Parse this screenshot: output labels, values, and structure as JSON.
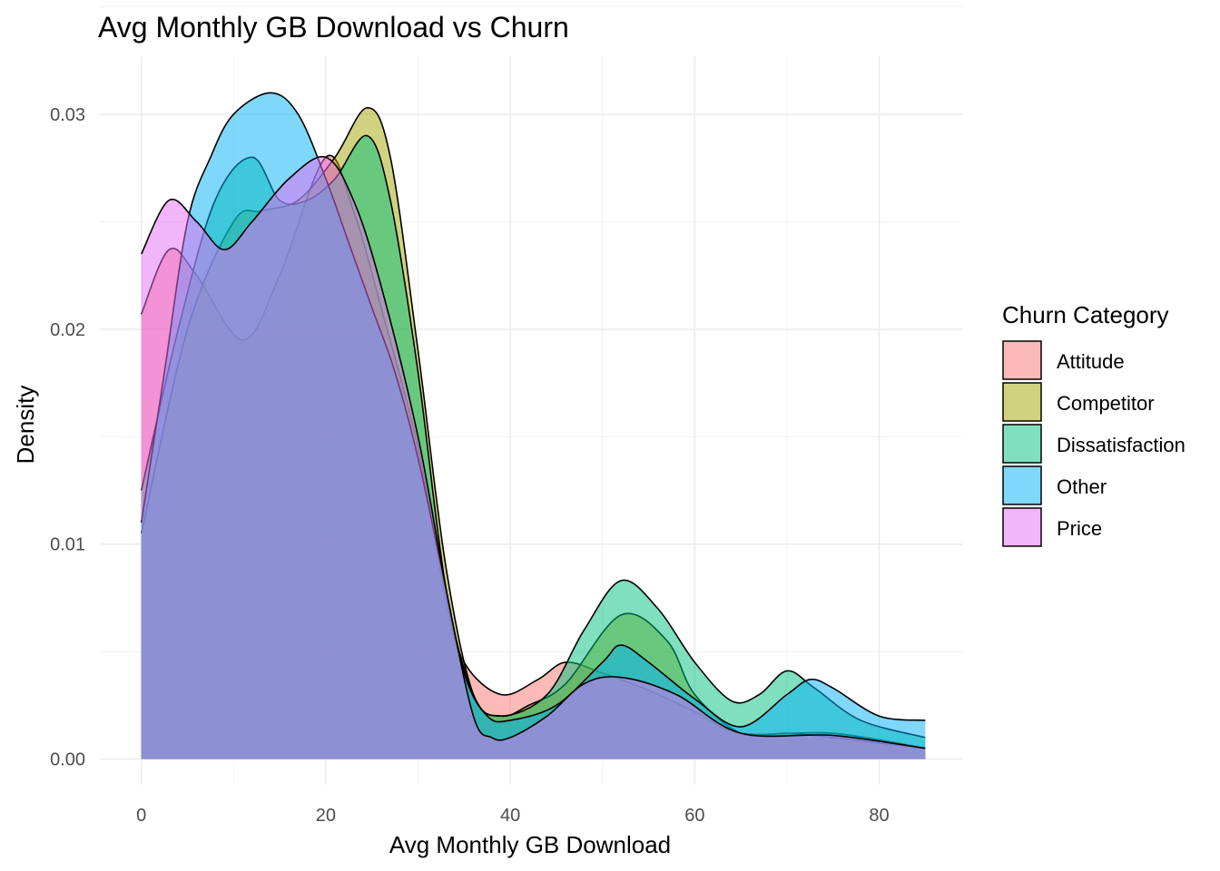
{
  "chart_data": {
    "type": "area",
    "subtype": "density",
    "title": "Avg Monthly GB Download vs Churn",
    "xlabel": "Avg Monthly GB Download",
    "ylabel": "Density",
    "xlim": [
      -4.5,
      89
    ],
    "ylim": [
      -0.0012,
      0.0327
    ],
    "xticks": [
      0,
      20,
      40,
      60,
      80
    ],
    "xtick_labels": [
      "0",
      "20",
      "40",
      "60",
      "80"
    ],
    "yticks": [
      0,
      0.01,
      0.02,
      0.03
    ],
    "ytick_labels": [
      "0.00",
      "0.01",
      "0.02",
      "0.03"
    ],
    "grid": true,
    "legend": {
      "title": "Churn Category",
      "placement": "right"
    },
    "fill_alpha": 0.5,
    "series": [
      {
        "name": "Attitude",
        "color": "#F8766D",
        "x": [
          0,
          3,
          6,
          11,
          15,
          20,
          23,
          26,
          30,
          33,
          35,
          39,
          43,
          46,
          50,
          55,
          60,
          65,
          75,
          85
        ],
        "y": [
          0.0207,
          0.0237,
          0.0225,
          0.0195,
          0.0225,
          0.028,
          0.0255,
          0.021,
          0.0145,
          0.0075,
          0.0045,
          0.003,
          0.0037,
          0.0045,
          0.004,
          0.0032,
          0.0022,
          0.0012,
          0.0012,
          0.0005
        ]
      },
      {
        "name": "Competitor",
        "color": "#A3A500",
        "x": [
          0,
          5,
          10,
          13,
          17,
          21,
          24.5,
          27,
          30,
          33,
          36,
          39,
          42,
          46,
          52,
          57,
          60,
          65,
          70,
          75,
          85
        ],
        "y": [
          0.0105,
          0.02,
          0.025,
          0.0255,
          0.026,
          0.028,
          0.0303,
          0.028,
          0.019,
          0.009,
          0.003,
          0.002,
          0.0025,
          0.0035,
          0.0067,
          0.0055,
          0.003,
          0.0012,
          0.0012,
          0.001,
          0.0005
        ]
      },
      {
        "name": "Dissatisfaction",
        "color": "#00BF7D",
        "x": [
          0,
          4,
          8,
          12,
          15,
          18,
          21,
          24.5,
          27,
          30,
          33,
          36,
          39,
          44,
          48,
          52,
          56,
          60,
          64,
          67,
          70,
          73,
          78,
          85
        ],
        "y": [
          0.0125,
          0.02,
          0.026,
          0.028,
          0.026,
          0.026,
          0.027,
          0.029,
          0.026,
          0.018,
          0.008,
          0.003,
          0.002,
          0.003,
          0.006,
          0.0083,
          0.007,
          0.0045,
          0.0027,
          0.003,
          0.0041,
          0.0033,
          0.0018,
          0.001
        ]
      },
      {
        "name": "Other",
        "color": "#00B0F6",
        "x": [
          0,
          2.5,
          5,
          7.5,
          10,
          14,
          17,
          20,
          22.5,
          25,
          27.5,
          30,
          32.5,
          35,
          37.5,
          40,
          45,
          50,
          52,
          55,
          60,
          65,
          70,
          72.5,
          75,
          80,
          85
        ],
        "y": [
          0.011,
          0.018,
          0.025,
          0.028,
          0.03,
          0.031,
          0.03,
          0.027,
          0.024,
          0.021,
          0.018,
          0.014,
          0.009,
          0.004,
          0.002,
          0.0018,
          0.0025,
          0.0045,
          0.0053,
          0.0045,
          0.0028,
          0.0015,
          0.003,
          0.0037,
          0.0033,
          0.002,
          0.0018
        ]
      },
      {
        "name": "Price",
        "color": "#E76BF3",
        "x": [
          0,
          3,
          6,
          9,
          12,
          16,
          20,
          23,
          26,
          30,
          33,
          36,
          38,
          40,
          44,
          48,
          52,
          58,
          65,
          75,
          85
        ],
        "y": [
          0.0235,
          0.026,
          0.025,
          0.0237,
          0.025,
          0.027,
          0.028,
          0.026,
          0.022,
          0.015,
          0.008,
          0.002,
          0.001,
          0.001,
          0.002,
          0.0035,
          0.0038,
          0.003,
          0.0012,
          0.0011,
          0.0005
        ]
      }
    ]
  }
}
